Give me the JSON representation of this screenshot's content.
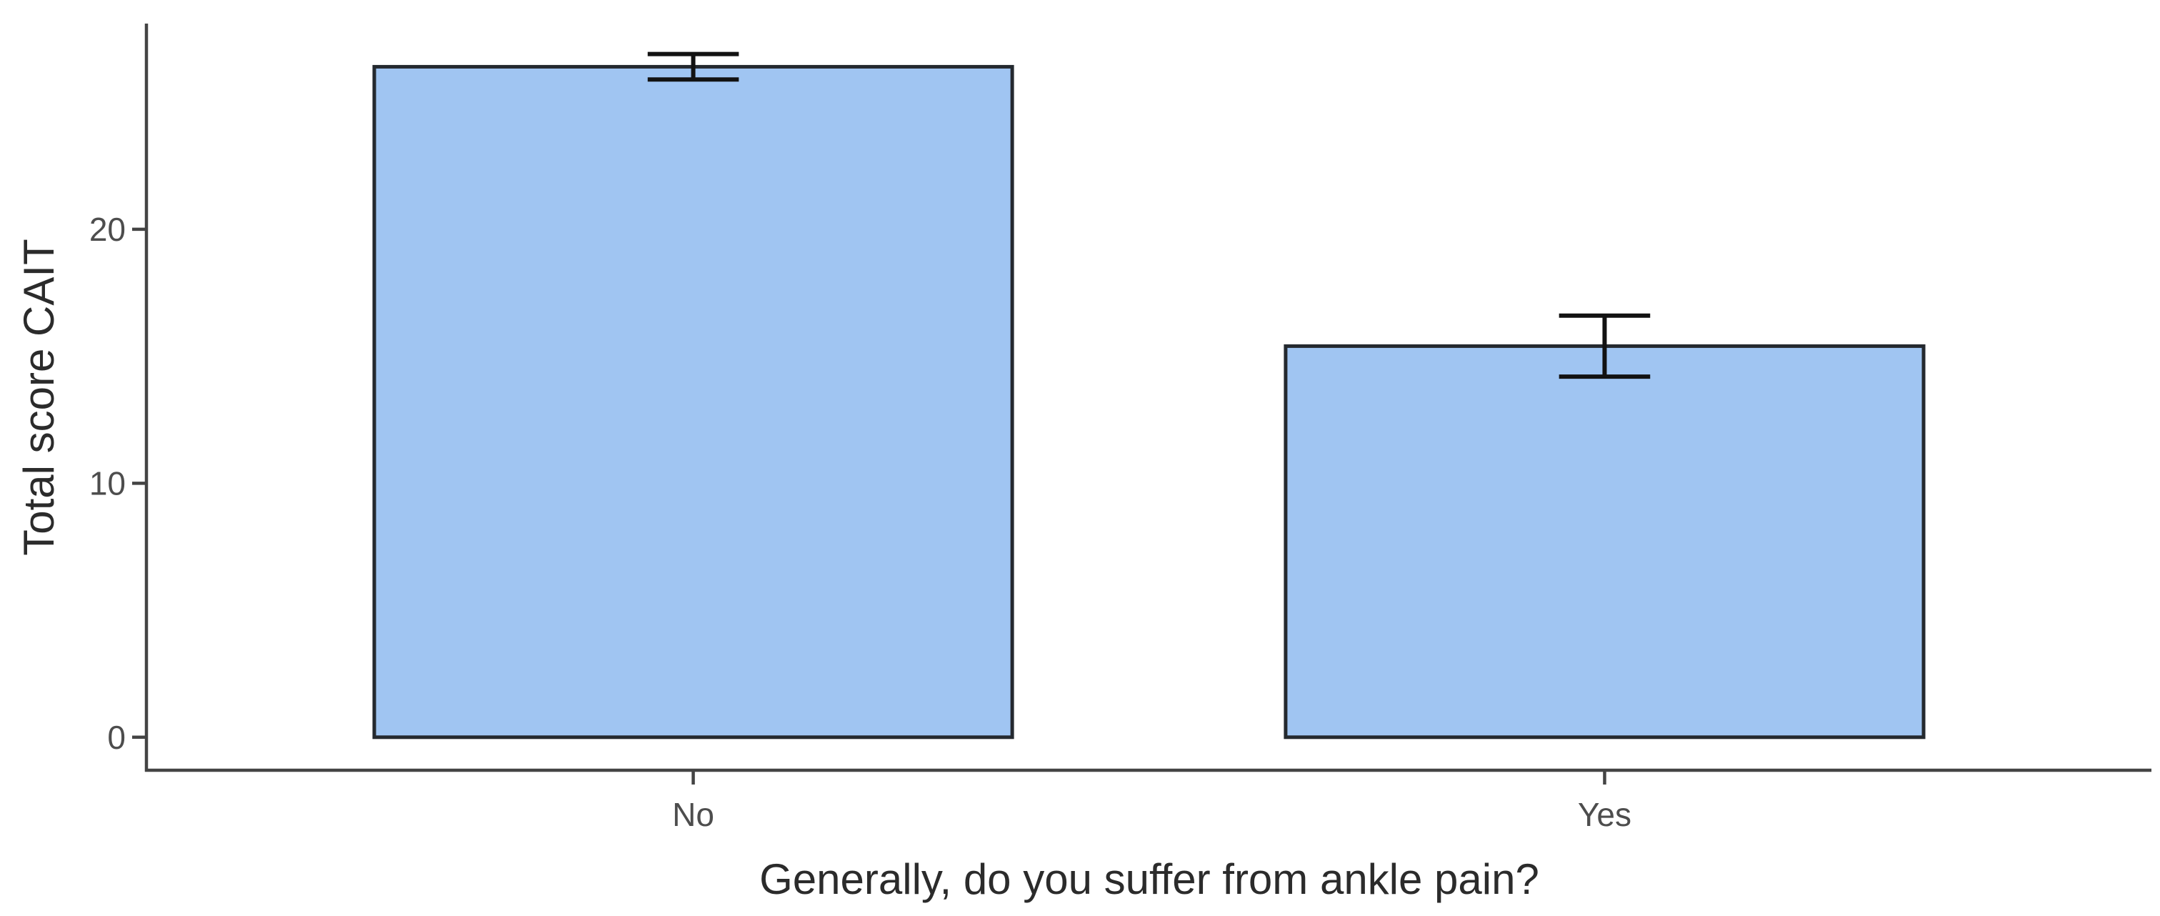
{
  "chart_data": {
    "type": "bar",
    "title": "",
    "xlabel": "Generally, do you suffer from ankle pain?",
    "ylabel": "Total score CAIT",
    "categories": [
      "No",
      "Yes"
    ],
    "values": [
      26.4,
      15.4
    ],
    "errors": [
      0.5,
      1.2
    ],
    "yticks": [
      0,
      10,
      20
    ],
    "ylim": [
      -1.3,
      28.1
    ],
    "xlim_units": [
      0.4,
      2.6
    ],
    "grid": false,
    "legend": false,
    "colors": {
      "bar_fill": "#A0C5F2",
      "bar_border": "#24292F",
      "error_bar": "#121212",
      "axis_line": "#444444",
      "tick_text": "#4d4d4d",
      "title_text": "#2b2b2b",
      "background": "#ffffff"
    },
    "bar_width_units": 0.7,
    "error_cap_half_units": 0.05
  }
}
